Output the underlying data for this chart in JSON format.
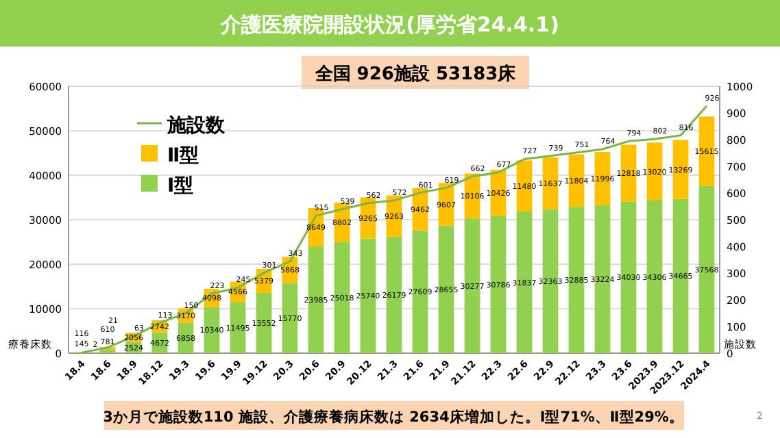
{
  "chart_data": {
    "type": "bar",
    "stacked": true,
    "title": "介護医療院開設状況(厚労省24.4.1)",
    "subtitle": "全国  926施設  53183床",
    "categories": [
      "18.4",
      "18.6",
      "18.9",
      "18.12",
      "19.3",
      "19.6",
      "19.9",
      "19.12",
      "20.3",
      "20.6",
      "20.9",
      "20.12",
      "21.3",
      "21.6",
      "21.9",
      "21.12",
      "22.3",
      "22.6",
      "22.9",
      "22.12",
      "23.3",
      "23.6",
      "2023.9",
      "2023.12",
      "2024.4"
    ],
    "series": [
      {
        "name": "Ⅰ型",
        "color": "#92d050",
        "values": [
          145,
          781,
          2524,
          4672,
          6858,
          10340,
          11495,
          13552,
          15770,
          23985,
          25018,
          25740,
          26179,
          27609,
          28655,
          30277,
          30786,
          31837,
          32363,
          32885,
          33224,
          34030,
          34306,
          34665,
          37568
        ]
      },
      {
        "name": "Ⅱ型",
        "color": "#ffc000",
        "values": [
          116,
          610,
          2056,
          2742,
          3170,
          4098,
          4566,
          5379,
          5868,
          8649,
          8802,
          9265,
          9263,
          9462,
          9607,
          10106,
          10426,
          11480,
          11637,
          11804,
          11996,
          12818,
          13020,
          13269,
          15615
        ]
      },
      {
        "name": "施設数",
        "type": "line",
        "axis": "y2",
        "color": "#7ab648",
        "values": [
          2,
          21,
          63,
          113,
          150,
          223,
          245,
          301,
          343,
          515,
          539,
          562,
          572,
          601,
          619,
          662,
          677,
          727,
          739,
          751,
          764,
          794,
          802,
          816,
          926
        ]
      }
    ],
    "ylim": [
      0,
      60000
    ],
    "yticks": [
      0,
      10000,
      20000,
      30000,
      40000,
      50000,
      60000
    ],
    "y2lim": [
      0,
      1000
    ],
    "y2ticks": [
      0,
      100,
      200,
      300,
      400,
      500,
      600,
      700,
      800,
      900,
      1000
    ],
    "ylabel": "療養床数",
    "y2label": "施設数",
    "grid": "y",
    "legend": "top left",
    "data_labels": true,
    "annotations": [
      "3か月で施設数110 施設、介護療養病床数は 2634床増加した。Ⅰ型71%、Ⅱ型29%。",
      "2"
    ]
  }
}
